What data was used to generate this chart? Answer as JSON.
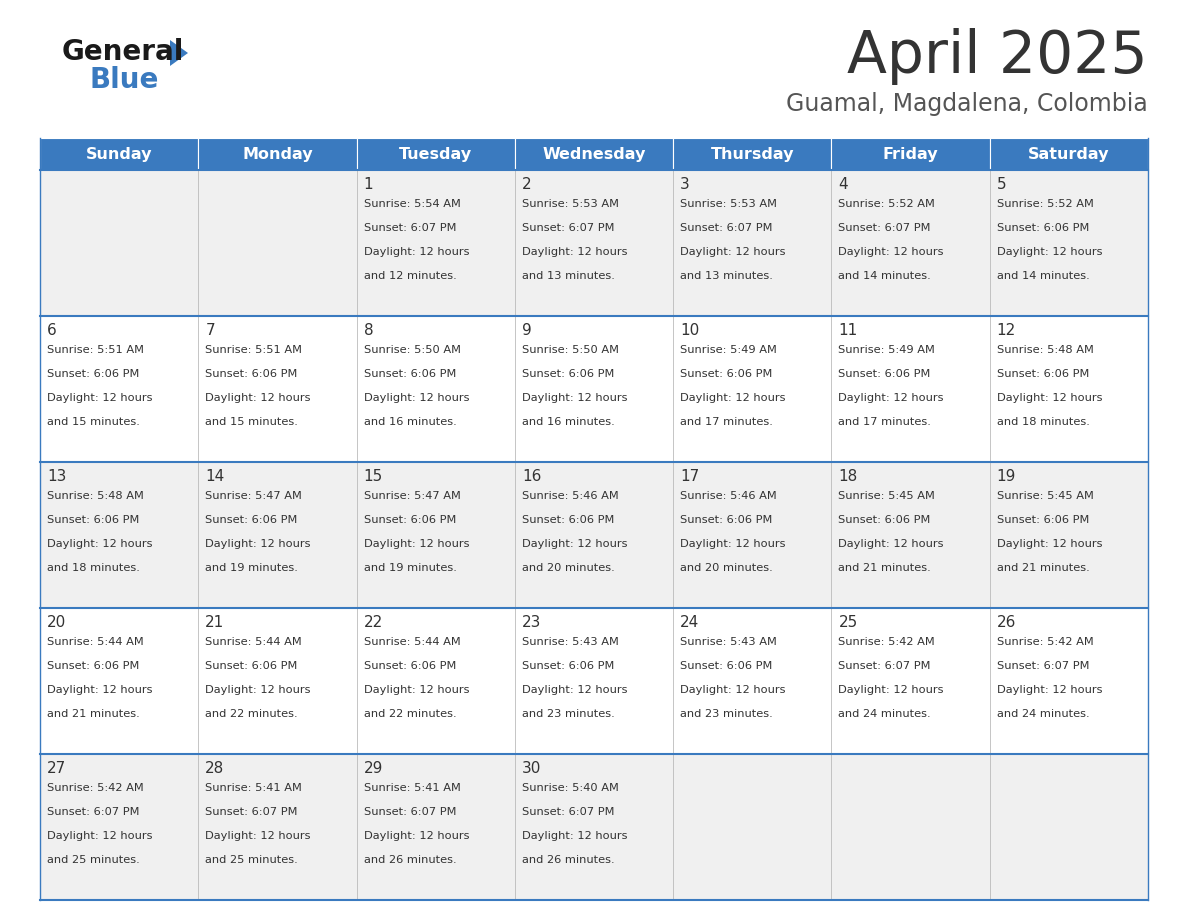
{
  "title": "April 2025",
  "subtitle": "Guamal, Magdalena, Colombia",
  "header_bg": "#3a7abf",
  "header_text_color": "#ffffff",
  "day_names": [
    "Sunday",
    "Monday",
    "Tuesday",
    "Wednesday",
    "Thursday",
    "Friday",
    "Saturday"
  ],
  "row_bg_odd": "#f0f0f0",
  "row_bg_even": "#ffffff",
  "cell_border_color": "#3a7abf",
  "day_number_color": "#333333",
  "content_color": "#333333",
  "title_color": "#333333",
  "subtitle_color": "#555555",
  "days": [
    {
      "day": 1,
      "col": 2,
      "row": 0,
      "sunrise": "5:54 AM",
      "sunset": "6:07 PM",
      "daylight_hours": 12,
      "daylight_mins": 12
    },
    {
      "day": 2,
      "col": 3,
      "row": 0,
      "sunrise": "5:53 AM",
      "sunset": "6:07 PM",
      "daylight_hours": 12,
      "daylight_mins": 13
    },
    {
      "day": 3,
      "col": 4,
      "row": 0,
      "sunrise": "5:53 AM",
      "sunset": "6:07 PM",
      "daylight_hours": 12,
      "daylight_mins": 13
    },
    {
      "day": 4,
      "col": 5,
      "row": 0,
      "sunrise": "5:52 AM",
      "sunset": "6:07 PM",
      "daylight_hours": 12,
      "daylight_mins": 14
    },
    {
      "day": 5,
      "col": 6,
      "row": 0,
      "sunrise": "5:52 AM",
      "sunset": "6:06 PM",
      "daylight_hours": 12,
      "daylight_mins": 14
    },
    {
      "day": 6,
      "col": 0,
      "row": 1,
      "sunrise": "5:51 AM",
      "sunset": "6:06 PM",
      "daylight_hours": 12,
      "daylight_mins": 15
    },
    {
      "day": 7,
      "col": 1,
      "row": 1,
      "sunrise": "5:51 AM",
      "sunset": "6:06 PM",
      "daylight_hours": 12,
      "daylight_mins": 15
    },
    {
      "day": 8,
      "col": 2,
      "row": 1,
      "sunrise": "5:50 AM",
      "sunset": "6:06 PM",
      "daylight_hours": 12,
      "daylight_mins": 16
    },
    {
      "day": 9,
      "col": 3,
      "row": 1,
      "sunrise": "5:50 AM",
      "sunset": "6:06 PM",
      "daylight_hours": 12,
      "daylight_mins": 16
    },
    {
      "day": 10,
      "col": 4,
      "row": 1,
      "sunrise": "5:49 AM",
      "sunset": "6:06 PM",
      "daylight_hours": 12,
      "daylight_mins": 17
    },
    {
      "day": 11,
      "col": 5,
      "row": 1,
      "sunrise": "5:49 AM",
      "sunset": "6:06 PM",
      "daylight_hours": 12,
      "daylight_mins": 17
    },
    {
      "day": 12,
      "col": 6,
      "row": 1,
      "sunrise": "5:48 AM",
      "sunset": "6:06 PM",
      "daylight_hours": 12,
      "daylight_mins": 18
    },
    {
      "day": 13,
      "col": 0,
      "row": 2,
      "sunrise": "5:48 AM",
      "sunset": "6:06 PM",
      "daylight_hours": 12,
      "daylight_mins": 18
    },
    {
      "day": 14,
      "col": 1,
      "row": 2,
      "sunrise": "5:47 AM",
      "sunset": "6:06 PM",
      "daylight_hours": 12,
      "daylight_mins": 19
    },
    {
      "day": 15,
      "col": 2,
      "row": 2,
      "sunrise": "5:47 AM",
      "sunset": "6:06 PM",
      "daylight_hours": 12,
      "daylight_mins": 19
    },
    {
      "day": 16,
      "col": 3,
      "row": 2,
      "sunrise": "5:46 AM",
      "sunset": "6:06 PM",
      "daylight_hours": 12,
      "daylight_mins": 20
    },
    {
      "day": 17,
      "col": 4,
      "row": 2,
      "sunrise": "5:46 AM",
      "sunset": "6:06 PM",
      "daylight_hours": 12,
      "daylight_mins": 20
    },
    {
      "day": 18,
      "col": 5,
      "row": 2,
      "sunrise": "5:45 AM",
      "sunset": "6:06 PM",
      "daylight_hours": 12,
      "daylight_mins": 21
    },
    {
      "day": 19,
      "col": 6,
      "row": 2,
      "sunrise": "5:45 AM",
      "sunset": "6:06 PM",
      "daylight_hours": 12,
      "daylight_mins": 21
    },
    {
      "day": 20,
      "col": 0,
      "row": 3,
      "sunrise": "5:44 AM",
      "sunset": "6:06 PM",
      "daylight_hours": 12,
      "daylight_mins": 21
    },
    {
      "day": 21,
      "col": 1,
      "row": 3,
      "sunrise": "5:44 AM",
      "sunset": "6:06 PM",
      "daylight_hours": 12,
      "daylight_mins": 22
    },
    {
      "day": 22,
      "col": 2,
      "row": 3,
      "sunrise": "5:44 AM",
      "sunset": "6:06 PM",
      "daylight_hours": 12,
      "daylight_mins": 22
    },
    {
      "day": 23,
      "col": 3,
      "row": 3,
      "sunrise": "5:43 AM",
      "sunset": "6:06 PM",
      "daylight_hours": 12,
      "daylight_mins": 23
    },
    {
      "day": 24,
      "col": 4,
      "row": 3,
      "sunrise": "5:43 AM",
      "sunset": "6:06 PM",
      "daylight_hours": 12,
      "daylight_mins": 23
    },
    {
      "day": 25,
      "col": 5,
      "row": 3,
      "sunrise": "5:42 AM",
      "sunset": "6:07 PM",
      "daylight_hours": 12,
      "daylight_mins": 24
    },
    {
      "day": 26,
      "col": 6,
      "row": 3,
      "sunrise": "5:42 AM",
      "sunset": "6:07 PM",
      "daylight_hours": 12,
      "daylight_mins": 24
    },
    {
      "day": 27,
      "col": 0,
      "row": 4,
      "sunrise": "5:42 AM",
      "sunset": "6:07 PM",
      "daylight_hours": 12,
      "daylight_mins": 25
    },
    {
      "day": 28,
      "col": 1,
      "row": 4,
      "sunrise": "5:41 AM",
      "sunset": "6:07 PM",
      "daylight_hours": 12,
      "daylight_mins": 25
    },
    {
      "day": 29,
      "col": 2,
      "row": 4,
      "sunrise": "5:41 AM",
      "sunset": "6:07 PM",
      "daylight_hours": 12,
      "daylight_mins": 26
    },
    {
      "day": 30,
      "col": 3,
      "row": 4,
      "sunrise": "5:40 AM",
      "sunset": "6:07 PM",
      "daylight_hours": 12,
      "daylight_mins": 26
    }
  ],
  "fig_width": 11.88,
  "fig_height": 9.18,
  "dpi": 100
}
